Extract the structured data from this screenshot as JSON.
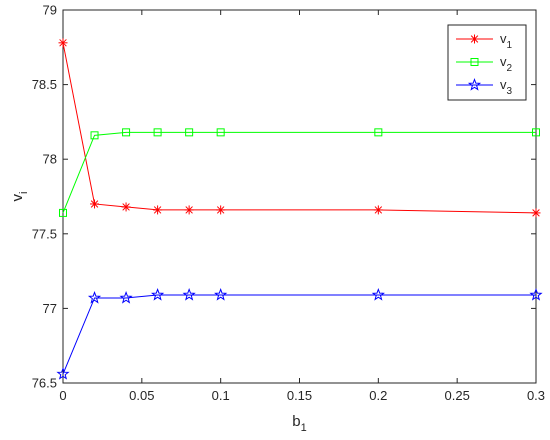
{
  "chart_data": {
    "type": "line",
    "xlabel": "b",
    "xlabel_sub": "1",
    "ylabel": "v",
    "ylabel_sub": "i",
    "xlim": [
      0,
      0.3
    ],
    "ylim": [
      76.5,
      79
    ],
    "xticks": [
      0,
      0.05,
      0.1,
      0.15,
      0.2,
      0.25,
      0.3
    ],
    "xtick_labels": [
      "0",
      "0.05",
      "0.1",
      "0.15",
      "0.2",
      "0.25",
      "0.3"
    ],
    "yticks": [
      76.5,
      77,
      77.5,
      78,
      78.5,
      79
    ],
    "ytick_labels": [
      "76.5",
      "77",
      "77.5",
      "78",
      "78.5",
      "79"
    ],
    "grid": false,
    "legend_position": "top-right",
    "x": [
      0,
      0.02,
      0.04,
      0.06,
      0.08,
      0.1,
      0.2,
      0.3
    ],
    "series": [
      {
        "name": "v",
        "name_sub": "1",
        "color": "#ff0000",
        "marker": "asterisk",
        "values": [
          78.78,
          77.7,
          77.68,
          77.66,
          77.66,
          77.66,
          77.66,
          77.64
        ]
      },
      {
        "name": "v",
        "name_sub": "2",
        "color": "#00ff00",
        "marker": "square",
        "values": [
          77.64,
          78.16,
          78.18,
          78.18,
          78.18,
          78.18,
          78.18,
          78.18
        ]
      },
      {
        "name": "v",
        "name_sub": "3",
        "color": "#0000ff",
        "marker": "pentagram",
        "values": [
          76.56,
          77.07,
          77.07,
          77.09,
          77.09,
          77.09,
          77.09,
          77.09
        ]
      }
    ]
  }
}
